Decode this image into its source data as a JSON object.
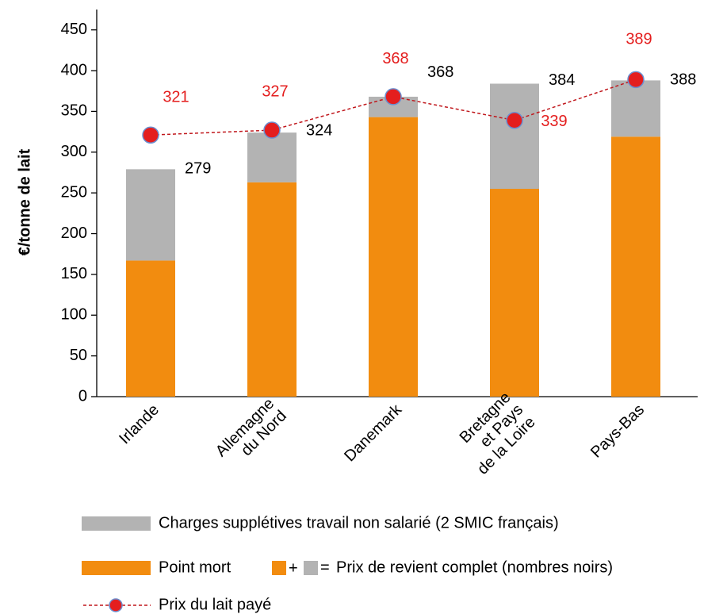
{
  "chart_data": {
    "type": "stacked_bar_line",
    "y_label": "€/tonne de lait",
    "categories": [
      "Irlande",
      "Allemagne\ndu Nord",
      "Danemark",
      "Bretagne\net Pays\nde la Loire",
      "Pays-Bas"
    ],
    "series": [
      {
        "name": "Point mort",
        "color": "#f28c0f",
        "values": [
          167,
          263,
          343,
          255,
          319
        ]
      },
      {
        "name": "Charges supplétives travail non salarié (2 SMIC français)",
        "color": "#b3b3b3",
        "values": [
          112,
          61,
          25,
          129,
          69
        ]
      },
      {
        "name": "Prix du lait payé",
        "type": "line",
        "color": "#e41e1e",
        "values": [
          321,
          327,
          368,
          339,
          389
        ]
      }
    ],
    "totals": [
      279,
      324,
      368,
      384,
      388
    ],
    "total_legend": {
      "plus": "+",
      "equals": "=",
      "label": "Prix de revient complet (nombres noirs)"
    },
    "ylim": [
      0,
      475
    ],
    "yticks": [
      0,
      50,
      100,
      150,
      200,
      250,
      300,
      350,
      400,
      450
    ]
  }
}
